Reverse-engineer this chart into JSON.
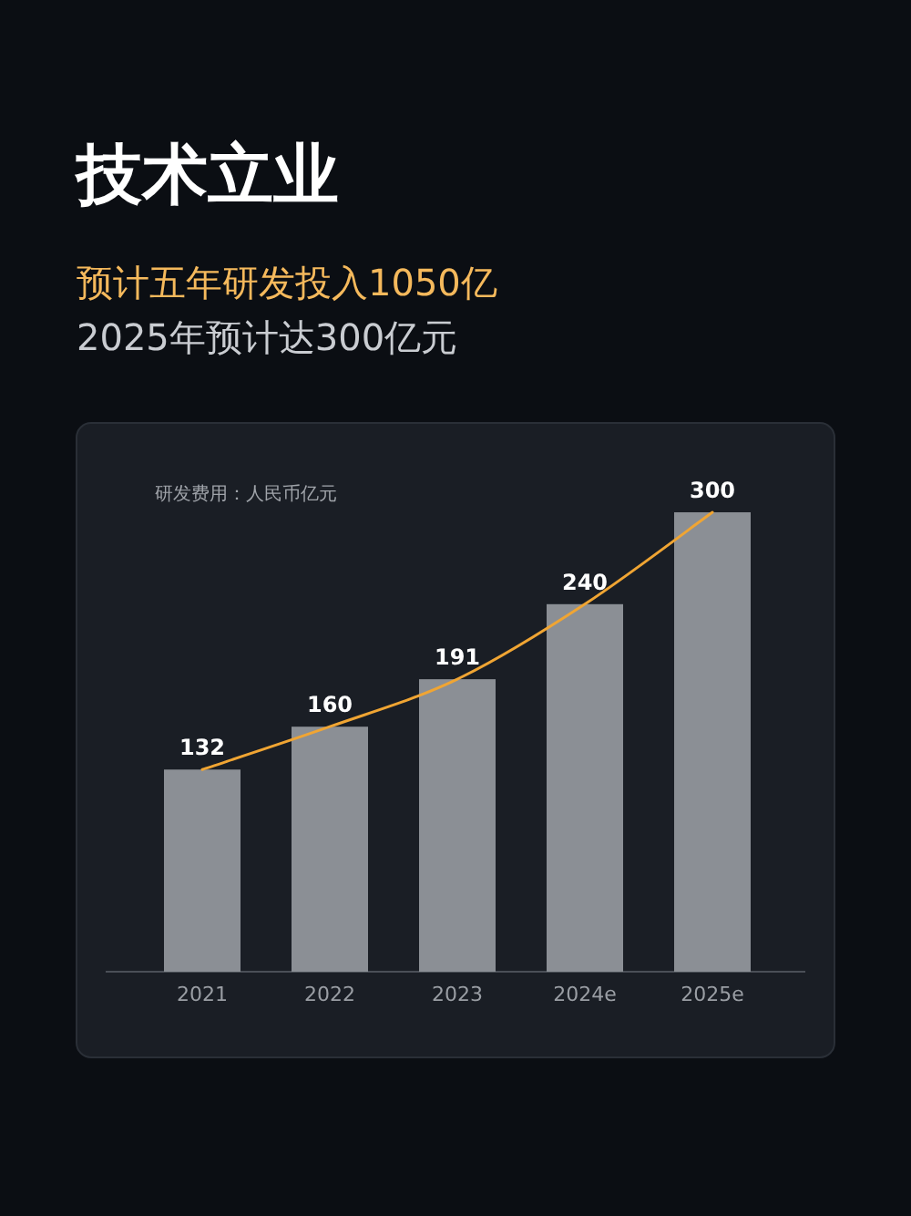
{
  "chart_data": {
    "type": "bar",
    "title": "技术立业",
    "subtitle": "预计五年研发投入1050亿",
    "annotations": [
      "2025年预计达300亿元",
      "研发费用：人民币亿元"
    ],
    "categories": [
      "2021",
      "2022",
      "2023",
      "2024e",
      "2025e"
    ],
    "series": [
      {
        "color": "#8b8f95",
        "values": [
          132,
          160,
          191,
          240,
          300
        ]
      },
      {
        "type": "line",
        "color": "#f0a533",
        "values": [
          132,
          160,
          191,
          240,
          300
        ],
        "value_labels": [
          null,
          null,
          null,
          null,
          null
        ]
      }
    ],
    "data_labels": true
  }
}
